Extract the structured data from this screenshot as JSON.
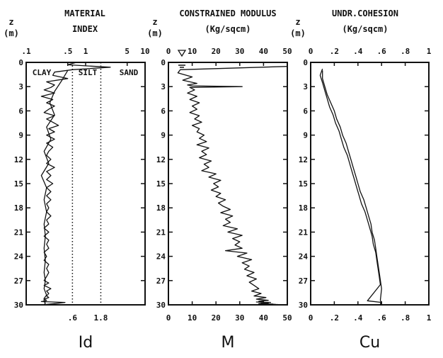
{
  "chart_data": [
    {
      "type": "line",
      "title": [
        "MATERIAL",
        "INDEX"
      ],
      "ylabel": [
        "z",
        "(m)"
      ],
      "xlabel": "Id",
      "xscale": "log",
      "xlim": [
        0.1,
        10
      ],
      "ylim": [
        0,
        30
      ],
      "x_ticks_top": [
        ".1",
        ".5",
        "1",
        "5",
        "10"
      ],
      "y_ticks": [
        "0",
        "3",
        "6",
        "9",
        "12",
        "15",
        "18",
        "21",
        "24",
        "27",
        "30"
      ],
      "zones": [
        "CLAY",
        "SILT",
        "SAND"
      ],
      "reference_lines": [
        {
          "x": 0.6,
          "label": ".6"
        },
        {
          "x": 1.8,
          "label": "1.8"
        }
      ],
      "series": [
        {
          "x": [
            0.7,
            0.5,
            2.6,
            0.6,
            0.3,
            0.28,
            0.5,
            0.22,
            0.3,
            0.26,
            0.2,
            0.3,
            0.18,
            0.28,
            0.22,
            0.3,
            0.24,
            0.2,
            0.3,
            0.22,
            0.28,
            0.35,
            0.24,
            0.3,
            0.22,
            0.3,
            0.22,
            0.28,
            0.24,
            0.22,
            0.26,
            0.22,
            0.3,
            0.22,
            0.26,
            0.22,
            0.28,
            0.22,
            0.26,
            0.22,
            0.26,
            0.22,
            0.24,
            0.22,
            0.26,
            0.22,
            0.24,
            0.2,
            0.24,
            0.2,
            0.24,
            0.22,
            0.24,
            0.2,
            0.22,
            0.2,
            0.24,
            0.22,
            0.24,
            0.22,
            0.2,
            0.24,
            0.2,
            0.26,
            0.22,
            0.24,
            0.22,
            0.24,
            0.2,
            0.22,
            0.2,
            0.18,
            0.45,
            0.3,
            0.22,
            0.26
          ],
          "y": [
            0,
            0.3,
            0.6,
            0.9,
            1.2,
            1.6,
            2.0,
            2.4,
            2.8,
            3.1,
            3.4,
            3.8,
            4.2,
            4.6,
            5.0,
            5.4,
            5.8,
            6.2,
            6.6,
            7.0,
            7.4,
            7.8,
            8.2,
            8.6,
            9.0,
            9.5,
            10.0,
            10.5,
            11.0,
            11.5,
            12.0,
            12.5,
            13.0,
            13.5,
            14.0,
            14.5,
            15.0,
            15.5,
            16.0,
            16.5,
            17.0,
            17.5,
            18.0,
            18.5,
            19.0,
            19.5,
            20.0,
            20.5,
            21.0,
            21.5,
            22.0,
            22.5,
            23.0,
            23.5,
            24.0,
            24.5,
            25.0,
            25.5,
            26.0,
            26.5,
            27.0,
            27.3,
            27.6,
            28.0,
            28.3,
            28.6,
            28.9,
            29.1,
            29.3,
            29.45,
            29.55,
            29.6,
            29.7,
            29.85,
            29.95,
            30.0
          ]
        },
        {
          "x": [
            0.5,
            0.4,
            0.3,
            0.25,
            0.3,
            0.22,
            0.26,
            0.2,
            0.24,
            0.18,
            0.22,
            0.2,
            0.22,
            0.2,
            0.21,
            0.2,
            0.21,
            0.2,
            0.21,
            0.2,
            0.22,
            0.2,
            0.2,
            0.21,
            0.2
          ],
          "y": [
            1.0,
            2.2,
            3.6,
            5.0,
            6.5,
            8.0,
            9.5,
            11.0,
            12.5,
            14.0,
            15.5,
            17.0,
            18.5,
            20.0,
            21.5,
            23.0,
            24.5,
            26.0,
            27.0,
            28.0,
            28.8,
            29.2,
            29.6,
            29.8,
            30.0
          ]
        }
      ]
    },
    {
      "type": "line",
      "title": [
        "CONSTRAINED MODULUS",
        "(Kg/sqcm)"
      ],
      "ylabel": [
        "z",
        "(m)"
      ],
      "xlabel": "M",
      "xlim": [
        0,
        50
      ],
      "ylim": [
        0,
        30
      ],
      "x_ticks": [
        "0",
        "10",
        "20",
        "30",
        "40",
        "50"
      ],
      "y_ticks": [
        "0",
        "3",
        "6",
        "9",
        "12",
        "15",
        "18",
        "21",
        "24",
        "27",
        "30"
      ],
      "series": [
        {
          "x": [
            50,
            5,
            4,
            10,
            6,
            12,
            8,
            10,
            31,
            9,
            11,
            8,
            12,
            9,
            13,
            10,
            12,
            9,
            13,
            11,
            14,
            10,
            13,
            12,
            15,
            13,
            16,
            12,
            17,
            14,
            16,
            13,
            18,
            15,
            17,
            14,
            20,
            17,
            22,
            19,
            21,
            18,
            22,
            20,
            24,
            21,
            23,
            26,
            22,
            27,
            24,
            26,
            23,
            29,
            25,
            31,
            27,
            30,
            28,
            31,
            24,
            33,
            29,
            35,
            31,
            34,
            32,
            36,
            33,
            37,
            34,
            36,
            38,
            35,
            39,
            36,
            41,
            37,
            42,
            38,
            40,
            37,
            43,
            39,
            42,
            38,
            44,
            40,
            45,
            41,
            46,
            40,
            45,
            42,
            44,
            5,
            47,
            42,
            48
          ],
          "y": [
            0.5,
            0.9,
            1.3,
            1.8,
            2.2,
            2.6,
            2.8,
            2.9,
            3.0,
            3.1,
            3.4,
            3.8,
            4.2,
            4.6,
            5.0,
            5.4,
            5.8,
            6.2,
            6.6,
            7.0,
            7.4,
            7.8,
            8.2,
            8.6,
            9.0,
            9.4,
            9.8,
            10.2,
            10.6,
            11.0,
            11.4,
            11.8,
            12.2,
            12.6,
            13.0,
            13.4,
            13.8,
            14.2,
            14.6,
            15.0,
            15.4,
            15.8,
            16.2,
            16.6,
            17.0,
            17.4,
            17.8,
            18.2,
            18.6,
            19.0,
            19.4,
            19.8,
            20.2,
            20.6,
            21.0,
            21.4,
            21.8,
            22.2,
            22.6,
            23.0,
            23.3,
            23.6,
            24.0,
            24.4,
            24.8,
            25.2,
            25.6,
            26.0,
            26.4,
            26.8,
            27.2,
            27.6,
            28.0,
            28.3,
            28.6,
            28.9,
            29.1,
            29.3,
            29.45,
            29.55,
            29.6,
            29.65,
            29.7,
            29.75,
            29.8,
            29.85,
            29.9,
            29.92,
            29.94,
            29.95,
            29.96,
            29.97,
            29.98,
            29.99,
            29.995,
            30.0,
            29.97,
            29.99,
            30.0
          ]
        }
      ]
    },
    {
      "type": "line",
      "title": [
        "UNDR.COHESION",
        "(Kg/sqcm)"
      ],
      "ylabel": [
        "z",
        "(m)"
      ],
      "xlabel": "Cu",
      "xlim": [
        0,
        1
      ],
      "ylim": [
        0,
        30
      ],
      "x_ticks": [
        "0",
        ".2",
        ".4",
        ".6",
        ".8",
        "1"
      ],
      "y_ticks": [
        "0",
        "3",
        "6",
        "9",
        "12",
        "15",
        "18",
        "21",
        "24",
        "27",
        "30"
      ],
      "series": [
        {
          "x": [
            0.1,
            0.09,
            0.08,
            0.1,
            0.12,
            0.14,
            0.16,
            0.19,
            0.21,
            0.24,
            0.26,
            0.28,
            0.31,
            0.33,
            0.35,
            0.37,
            0.39,
            0.41,
            0.43,
            0.46,
            0.48,
            0.5,
            0.52,
            0.53,
            0.55,
            0.56,
            0.57,
            0.58,
            0.59,
            0.48,
            0.6,
            0.59,
            0.6
          ],
          "y": [
            0.8,
            1.2,
            1.6,
            2.5,
            3.5,
            4.5,
            5.5,
            6.5,
            7.5,
            8.5,
            9.5,
            10.5,
            11.5,
            12.5,
            13.5,
            14.5,
            15.5,
            16.5,
            17.5,
            18.5,
            19.5,
            20.5,
            21.5,
            22.5,
            23.5,
            24.5,
            25.5,
            26.5,
            27.5,
            29.5,
            29.7,
            29.85,
            30.0
          ]
        },
        {
          "x": [
            0.1,
            0.1,
            0.12,
            0.14,
            0.17,
            0.2,
            0.22,
            0.25,
            0.27,
            0.3,
            0.32,
            0.34,
            0.36,
            0.38,
            0.4,
            0.42,
            0.45,
            0.47,
            0.49,
            0.51,
            0.52,
            0.54,
            0.55,
            0.56,
            0.57,
            0.58,
            0.6,
            0.59,
            0.6
          ],
          "y": [
            1.0,
            2.0,
            3.0,
            4.0,
            5.0,
            6.0,
            7.0,
            8.0,
            9.0,
            10.0,
            11.0,
            12.0,
            13.0,
            14.0,
            15.0,
            16.0,
            17.0,
            18.0,
            19.0,
            20.0,
            21.0,
            22.0,
            23.0,
            24.0,
            25.0,
            26.0,
            28.0,
            29.4,
            30.0
          ]
        }
      ]
    }
  ]
}
